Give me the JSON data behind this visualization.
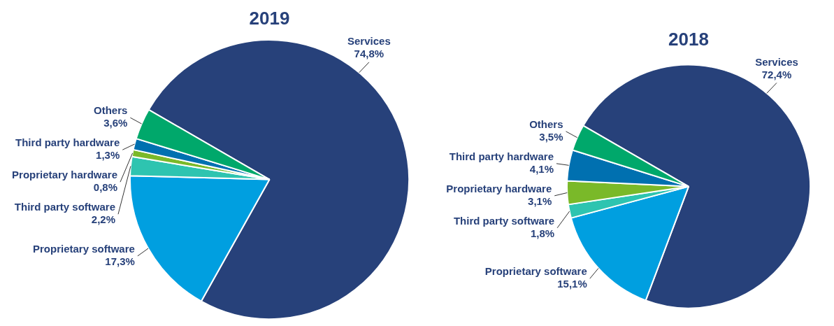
{
  "chart_data": [
    {
      "type": "pie",
      "title": "2019",
      "categories": [
        "Services",
        "Proprietary software",
        "Third party software",
        "Proprietary hardware",
        "Third party hardware",
        "Others"
      ],
      "values": [
        74.8,
        17.3,
        2.2,
        0.8,
        1.3,
        3.6
      ],
      "colors": [
        "#27417a",
        "#009fe0",
        "#2ec4b0",
        "#7ab929",
        "#0070b0",
        "#00a86b"
      ],
      "value_labels": [
        "74,8%",
        "17,3%",
        "2,2%",
        "0,8%",
        "1,3%",
        "3,6%"
      ]
    },
    {
      "type": "pie",
      "title": "2018",
      "categories": [
        "Services",
        "Proprietary software",
        "Third party software",
        "Proprietary hardware",
        "Third party hardware",
        "Others"
      ],
      "values": [
        72.4,
        15.1,
        1.8,
        3.1,
        4.1,
        3.5
      ],
      "colors": [
        "#27417a",
        "#009fe0",
        "#2ec4b0",
        "#7ab929",
        "#0070b0",
        "#00a86b"
      ],
      "value_labels": [
        "72,4%",
        "15,1%",
        "1,8%",
        "3,1%",
        "4,1%",
        "3,5%"
      ]
    }
  ]
}
